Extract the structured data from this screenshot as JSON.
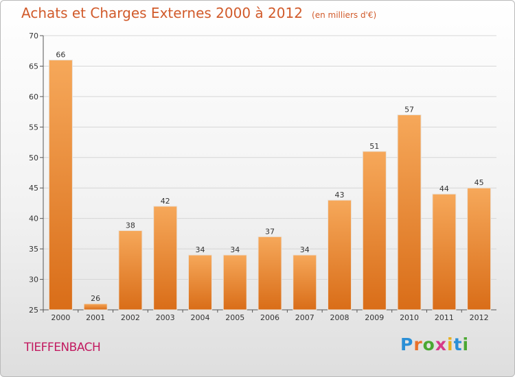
{
  "header": {
    "title": "Achats et Charges Externes 2000 à 2012",
    "unit": "(en milliers d'€)"
  },
  "commune": "TIEFFENBACH",
  "logo": {
    "text": "Proxiti",
    "letters": [
      "P",
      "r",
      "o",
      "x",
      "i",
      "t",
      "i"
    ],
    "colors": [
      "#2a8fd6",
      "#e8702a",
      "#4aa832",
      "#d63a8a",
      "#e8b020",
      "#2a8fd6",
      "#4aa832"
    ]
  },
  "colors": {
    "bar_light": "#f6a85a",
    "bar_dark": "#d96d18",
    "accent": "#d15a2a",
    "commune": "#c21a60"
  },
  "chart_data": {
    "type": "bar",
    "title": "Achats et Charges Externes 2000 à 2012",
    "subtitle": "(en milliers d'€)",
    "categories": [
      "2000",
      "2001",
      "2002",
      "2003",
      "2004",
      "2005",
      "2006",
      "2007",
      "2008",
      "2009",
      "2010",
      "2011",
      "2012"
    ],
    "values": [
      66,
      26,
      38,
      42,
      34,
      34,
      37,
      34,
      43,
      51,
      57,
      44,
      45
    ],
    "ylim": [
      25,
      70
    ],
    "yticks": [
      25,
      30,
      35,
      40,
      45,
      50,
      55,
      60,
      65,
      70
    ],
    "grid": true,
    "xlabel": "",
    "ylabel": ""
  }
}
